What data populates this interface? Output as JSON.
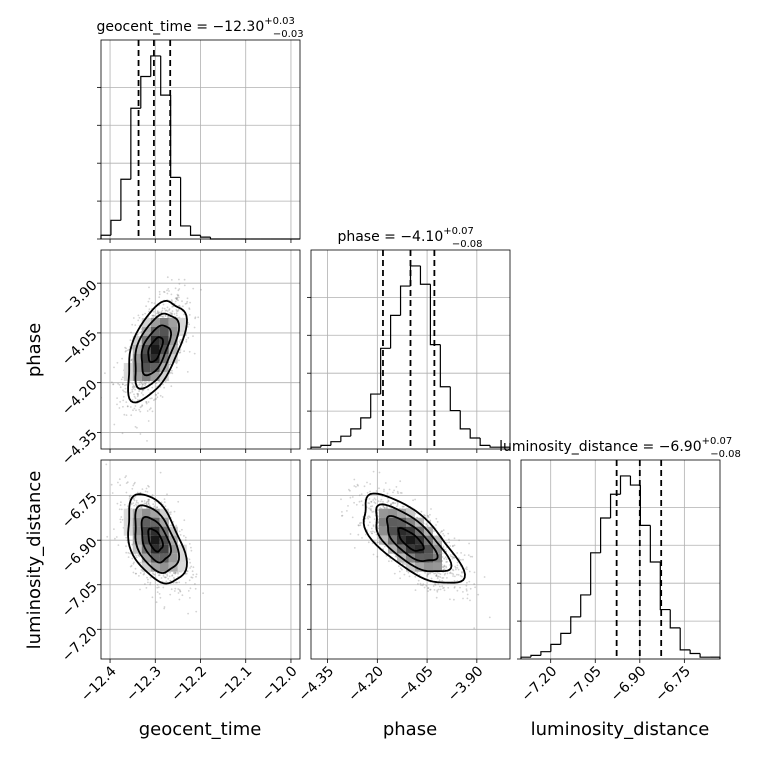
{
  "chart_data": {
    "type": "corner",
    "parameters": [
      {
        "key": "geocent_time",
        "label": "geocent_time",
        "title_text": "geocent_time = ",
        "median": "−12.30",
        "plus": "+0.03",
        "minus": "−0.03",
        "range": [
          -12.42,
          -11.98
        ],
        "ticks": [
          -12.4,
          -12.3,
          -12.2,
          -12.1,
          -12.0
        ],
        "tick_labels": [
          "−12.4",
          "−12.3",
          "−12.2",
          "−12.1",
          "−12.0"
        ],
        "quantiles": [
          -12.337,
          -12.303,
          -12.267
        ],
        "hist_edges": [
          -12.42,
          -12.398,
          -12.376,
          -12.354,
          -12.332,
          -12.31,
          -12.288,
          -12.266,
          -12.244,
          -12.222,
          -12.2,
          -12.178,
          -12.156,
          -12.134,
          -12.112,
          -12.09,
          -12.068,
          -12.046,
          -12.024,
          -12.002,
          -11.98
        ],
        "hist_counts": [
          2,
          10,
          32,
          70,
          87,
          98,
          77,
          33,
          7,
          2,
          1,
          0,
          0,
          0,
          0,
          0,
          0,
          0,
          0,
          0
        ]
      },
      {
        "key": "phase",
        "label": "phase",
        "title_text": "phase = ",
        "median": "−4.10",
        "plus": "+0.07",
        "minus": "−0.08",
        "range": [
          -4.4,
          -3.8
        ],
        "ticks": [
          -4.35,
          -4.2,
          -4.05,
          -3.9
        ],
        "tick_labels": [
          "−4.35",
          "−4.20",
          "−4.05",
          "−3.90"
        ],
        "quantiles": [
          -4.183,
          -4.1,
          -4.028
        ],
        "hist_edges": [
          -4.4,
          -4.37,
          -4.34,
          -4.31,
          -4.28,
          -4.25,
          -4.22,
          -4.19,
          -4.16,
          -4.13,
          -4.1,
          -4.07,
          -4.04,
          -4.01,
          -3.98,
          -3.95,
          -3.92,
          -3.89,
          -3.86,
          -3.83,
          -3.8
        ],
        "hist_counts": [
          1,
          2,
          4,
          7,
          11,
          17,
          30,
          55,
          73,
          89,
          100,
          90,
          57,
          34,
          21,
          11,
          6,
          2,
          1,
          1
        ]
      },
      {
        "key": "luminosity_distance",
        "label": "luminosity_distance",
        "title_text": "luminosity_distance = ",
        "median": "−6.90",
        "plus": "+0.07",
        "minus": "−0.08",
        "range": [
          -7.3,
          -6.63
        ],
        "ticks": [
          -7.2,
          -7.05,
          -6.9,
          -6.75
        ],
        "tick_labels": [
          "−7.20",
          "−7.05",
          "−6.90",
          "−6.75"
        ],
        "quantiles": [
          -6.978,
          -6.9,
          -6.828
        ],
        "hist_edges": [
          -7.3,
          -7.2665,
          -7.233,
          -7.1995,
          -7.166,
          -7.1325,
          -7.099,
          -7.0655,
          -7.032,
          -6.9985,
          -6.965,
          -6.9315,
          -6.898,
          -6.8645,
          -6.831,
          -6.7975,
          -6.764,
          -6.7305,
          -6.697,
          -6.6635,
          -6.63
        ],
        "hist_counts": [
          1,
          2,
          4,
          8,
          14,
          23,
          35,
          58,
          77,
          90,
          100,
          95,
          73,
          53,
          27,
          17,
          5,
          3,
          1,
          1
        ]
      }
    ],
    "pairs": [
      {
        "x": "geocent_time",
        "y": "phase",
        "center": [
          -12.3,
          -4.1
        ],
        "sx": 0.032,
        "sy": 0.075,
        "rho": 0.55,
        "n": 1400
      },
      {
        "x": "geocent_time",
        "y": "luminosity_distance",
        "center": [
          -12.3,
          -6.9
        ],
        "sx": 0.032,
        "sy": 0.075,
        "rho": -0.45,
        "n": 1400
      },
      {
        "x": "phase",
        "y": "luminosity_distance",
        "center": [
          -4.1,
          -6.9
        ],
        "sx": 0.075,
        "sy": 0.075,
        "rho": -0.7,
        "n": 1400
      }
    ],
    "grid": true,
    "contour_levels": [
      "0.5σ",
      "1σ",
      "1.5σ",
      "2σ"
    ]
  }
}
